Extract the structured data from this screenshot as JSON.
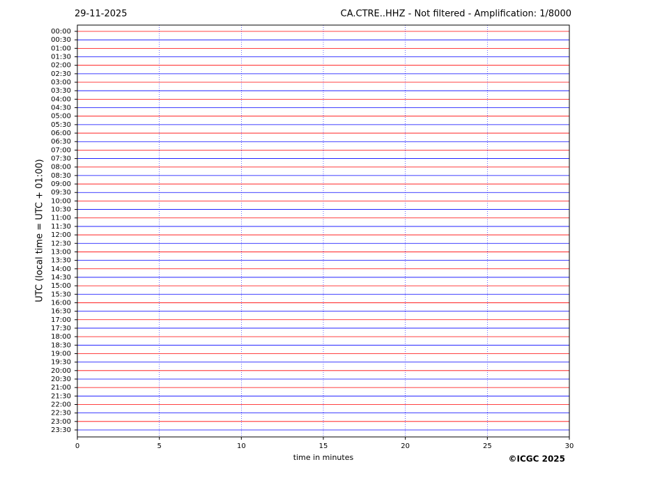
{
  "chart_data": {
    "type": "helicorder",
    "date": "29-11-2025",
    "title": "CA.CTRE..HHZ - Not filtered - Amplification: 1/8000",
    "xlabel": "time in minutes",
    "ylabel": "UTC (local time = UTC + 01:00)",
    "xlim": [
      0,
      30
    ],
    "xticks": [
      0,
      5,
      10,
      15,
      20,
      25,
      30
    ],
    "categories": [
      "00:00",
      "00:30",
      "01:00",
      "01:30",
      "02:00",
      "02:30",
      "03:00",
      "03:30",
      "04:00",
      "04:30",
      "05:00",
      "05:30",
      "06:00",
      "06:30",
      "07:00",
      "07:30",
      "08:00",
      "08:30",
      "09:00",
      "09:30",
      "10:00",
      "10:30",
      "11:00",
      "11:30",
      "12:00",
      "12:30",
      "13:00",
      "13:30",
      "14:00",
      "14:30",
      "15:00",
      "15:30",
      "16:00",
      "16:30",
      "17:00",
      "17:30",
      "18:00",
      "18:30",
      "19:00",
      "19:30",
      "20:00",
      "20:30",
      "21:00",
      "21:30",
      "22:00",
      "22:30",
      "23:00",
      "23:30"
    ],
    "trace_colors": [
      "#ff0000",
      "#0000ff"
    ],
    "grid": true
  },
  "copyright": "©ICGC 2025"
}
